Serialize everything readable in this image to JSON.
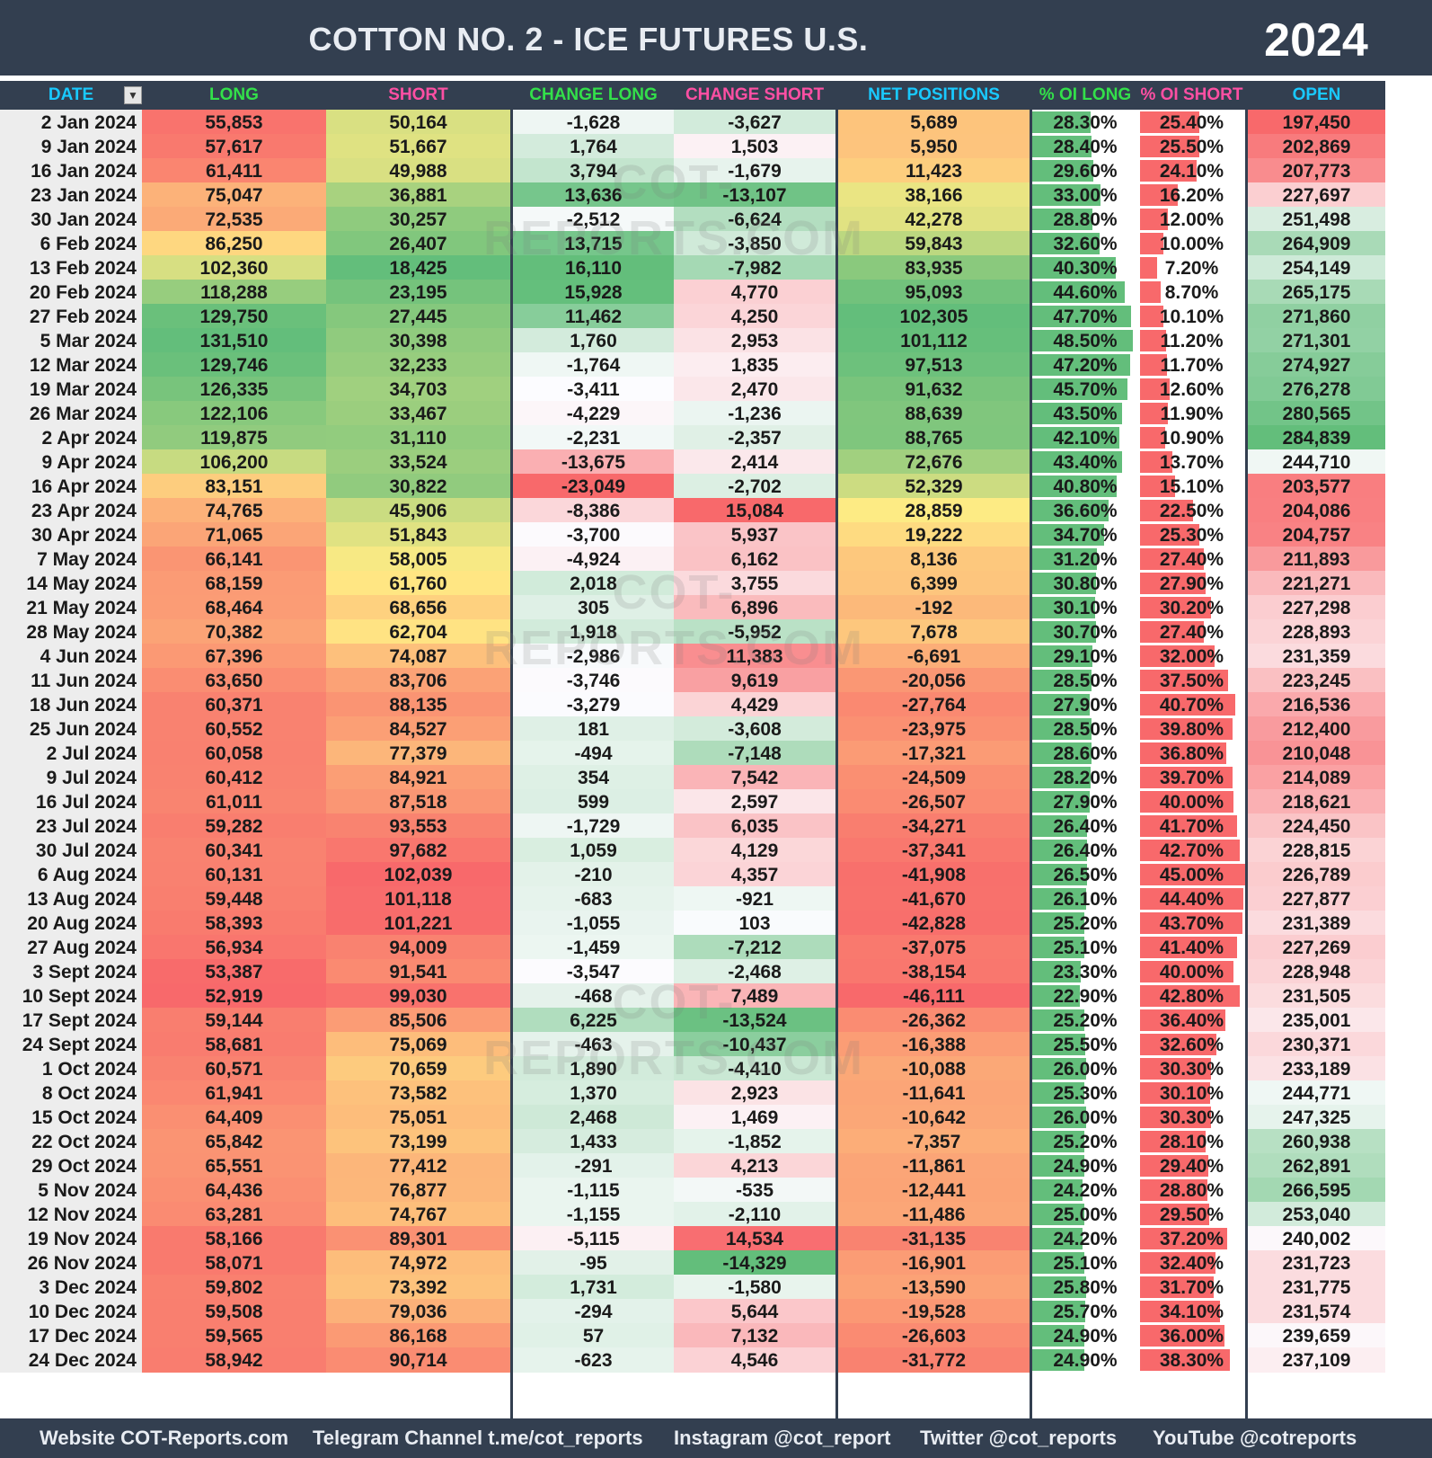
{
  "title": "COTTON NO. 2 - ICE FUTURES U.S.",
  "year": "2024",
  "columns": {
    "date": "DATE",
    "long": "LONG",
    "short": "SHORT",
    "change_long": "CHANGE LONG",
    "change_short": "CHANGE SHORT",
    "net": "NET POSITIONS",
    "oi_long": "% OI LONG",
    "oi_short": "% OI SHORT",
    "open_interest": "OPEN INTEREST"
  },
  "watermark": "COT-REPORTS.COM",
  "footer": {
    "website": "Website COT-Reports.com",
    "telegram": "Telegram Channel t.me/cot_reports",
    "instagram": "Instagram @cot_report",
    "twitter": "Twitter @cot_reports",
    "youtube": "YouTube @cotreports"
  },
  "rows": [
    [
      "2 Jan 2024",
      "55,853",
      "50,164",
      "-1,628",
      "-3,627",
      "5,689",
      "28.30%",
      "25.40%",
      "197,450"
    ],
    [
      "9 Jan 2024",
      "57,617",
      "51,667",
      "1,764",
      "1,503",
      "5,950",
      "28.40%",
      "25.50%",
      "202,869"
    ],
    [
      "16 Jan 2024",
      "61,411",
      "49,988",
      "3,794",
      "-1,679",
      "11,423",
      "29.60%",
      "24.10%",
      "207,773"
    ],
    [
      "23 Jan 2024",
      "75,047",
      "36,881",
      "13,636",
      "-13,107",
      "38,166",
      "33.00%",
      "16.20%",
      "227,697"
    ],
    [
      "30 Jan 2024",
      "72,535",
      "30,257",
      "-2,512",
      "-6,624",
      "42,278",
      "28.80%",
      "12.00%",
      "251,498"
    ],
    [
      "6 Feb 2024",
      "86,250",
      "26,407",
      "13,715",
      "-3,850",
      "59,843",
      "32.60%",
      "10.00%",
      "264,909"
    ],
    [
      "13 Feb 2024",
      "102,360",
      "18,425",
      "16,110",
      "-7,982",
      "83,935",
      "40.30%",
      "7.20%",
      "254,149"
    ],
    [
      "20 Feb 2024",
      "118,288",
      "23,195",
      "15,928",
      "4,770",
      "95,093",
      "44.60%",
      "8.70%",
      "265,175"
    ],
    [
      "27 Feb 2024",
      "129,750",
      "27,445",
      "11,462",
      "4,250",
      "102,305",
      "47.70%",
      "10.10%",
      "271,860"
    ],
    [
      "5 Mar 2024",
      "131,510",
      "30,398",
      "1,760",
      "2,953",
      "101,112",
      "48.50%",
      "11.20%",
      "271,301"
    ],
    [
      "12 Mar 2024",
      "129,746",
      "32,233",
      "-1,764",
      "1,835",
      "97,513",
      "47.20%",
      "11.70%",
      "274,927"
    ],
    [
      "19 Mar 2024",
      "126,335",
      "34,703",
      "-3,411",
      "2,470",
      "91,632",
      "45.70%",
      "12.60%",
      "276,278"
    ],
    [
      "26 Mar 2024",
      "122,106",
      "33,467",
      "-4,229",
      "-1,236",
      "88,639",
      "43.50%",
      "11.90%",
      "280,565"
    ],
    [
      "2 Apr 2024",
      "119,875",
      "31,110",
      "-2,231",
      "-2,357",
      "88,765",
      "42.10%",
      "10.90%",
      "284,839"
    ],
    [
      "9 Apr 2024",
      "106,200",
      "33,524",
      "-13,675",
      "2,414",
      "72,676",
      "43.40%",
      "13.70%",
      "244,710"
    ],
    [
      "16 Apr 2024",
      "83,151",
      "30,822",
      "-23,049",
      "-2,702",
      "52,329",
      "40.80%",
      "15.10%",
      "203,577"
    ],
    [
      "23 Apr 2024",
      "74,765",
      "45,906",
      "-8,386",
      "15,084",
      "28,859",
      "36.60%",
      "22.50%",
      "204,086"
    ],
    [
      "30 Apr 2024",
      "71,065",
      "51,843",
      "-3,700",
      "5,937",
      "19,222",
      "34.70%",
      "25.30%",
      "204,757"
    ],
    [
      "7 May 2024",
      "66,141",
      "58,005",
      "-4,924",
      "6,162",
      "8,136",
      "31.20%",
      "27.40%",
      "211,893"
    ],
    [
      "14 May 2024",
      "68,159",
      "61,760",
      "2,018",
      "3,755",
      "6,399",
      "30.80%",
      "27.90%",
      "221,271"
    ],
    [
      "21 May 2024",
      "68,464",
      "68,656",
      "305",
      "6,896",
      "-192",
      "30.10%",
      "30.20%",
      "227,298"
    ],
    [
      "28 May 2024",
      "70,382",
      "62,704",
      "1,918",
      "-5,952",
      "7,678",
      "30.70%",
      "27.40%",
      "228,893"
    ],
    [
      "4 Jun 2024",
      "67,396",
      "74,087",
      "-2,986",
      "11,383",
      "-6,691",
      "29.10%",
      "32.00%",
      "231,359"
    ],
    [
      "11 Jun 2024",
      "63,650",
      "83,706",
      "-3,746",
      "9,619",
      "-20,056",
      "28.50%",
      "37.50%",
      "223,245"
    ],
    [
      "18 Jun 2024",
      "60,371",
      "88,135",
      "-3,279",
      "4,429",
      "-27,764",
      "27.90%",
      "40.70%",
      "216,536"
    ],
    [
      "25 Jun 2024",
      "60,552",
      "84,527",
      "181",
      "-3,608",
      "-23,975",
      "28.50%",
      "39.80%",
      "212,400"
    ],
    [
      "2 Jul 2024",
      "60,058",
      "77,379",
      "-494",
      "-7,148",
      "-17,321",
      "28.60%",
      "36.80%",
      "210,048"
    ],
    [
      "9 Jul 2024",
      "60,412",
      "84,921",
      "354",
      "7,542",
      "-24,509",
      "28.20%",
      "39.70%",
      "214,089"
    ],
    [
      "16 Jul 2024",
      "61,011",
      "87,518",
      "599",
      "2,597",
      "-26,507",
      "27.90%",
      "40.00%",
      "218,621"
    ],
    [
      "23 Jul 2024",
      "59,282",
      "93,553",
      "-1,729",
      "6,035",
      "-34,271",
      "26.40%",
      "41.70%",
      "224,450"
    ],
    [
      "30 Jul 2024",
      "60,341",
      "97,682",
      "1,059",
      "4,129",
      "-37,341",
      "26.40%",
      "42.70%",
      "228,815"
    ],
    [
      "6 Aug 2024",
      "60,131",
      "102,039",
      "-210",
      "4,357",
      "-41,908",
      "26.50%",
      "45.00%",
      "226,789"
    ],
    [
      "13 Aug 2024",
      "59,448",
      "101,118",
      "-683",
      "-921",
      "-41,670",
      "26.10%",
      "44.40%",
      "227,877"
    ],
    [
      "20 Aug 2024",
      "58,393",
      "101,221",
      "-1,055",
      "103",
      "-42,828",
      "25.20%",
      "43.70%",
      "231,389"
    ],
    [
      "27 Aug 2024",
      "56,934",
      "94,009",
      "-1,459",
      "-7,212",
      "-37,075",
      "25.10%",
      "41.40%",
      "227,269"
    ],
    [
      "3 Sept 2024",
      "53,387",
      "91,541",
      "-3,547",
      "-2,468",
      "-38,154",
      "23.30%",
      "40.00%",
      "228,948"
    ],
    [
      "10 Sept 2024",
      "52,919",
      "99,030",
      "-468",
      "7,489",
      "-46,111",
      "22.90%",
      "42.80%",
      "231,505"
    ],
    [
      "17 Sept 2024",
      "59,144",
      "85,506",
      "6,225",
      "-13,524",
      "-26,362",
      "25.20%",
      "36.40%",
      "235,001"
    ],
    [
      "24 Sept 2024",
      "58,681",
      "75,069",
      "-463",
      "-10,437",
      "-16,388",
      "25.50%",
      "32.60%",
      "230,371"
    ],
    [
      "1 Oct 2024",
      "60,571",
      "70,659",
      "1,890",
      "-4,410",
      "-10,088",
      "26.00%",
      "30.30%",
      "233,189"
    ],
    [
      "8 Oct 2024",
      "61,941",
      "73,582",
      "1,370",
      "2,923",
      "-11,641",
      "25.30%",
      "30.10%",
      "244,771"
    ],
    [
      "15 Oct 2024",
      "64,409",
      "75,051",
      "2,468",
      "1,469",
      "-10,642",
      "26.00%",
      "30.30%",
      "247,325"
    ],
    [
      "22 Oct 2024",
      "65,842",
      "73,199",
      "1,433",
      "-1,852",
      "-7,357",
      "25.20%",
      "28.10%",
      "260,938"
    ],
    [
      "29 Oct 2024",
      "65,551",
      "77,412",
      "-291",
      "4,213",
      "-11,861",
      "24.90%",
      "29.40%",
      "262,891"
    ],
    [
      "5 Nov 2024",
      "64,436",
      "76,877",
      "-1,115",
      "-535",
      "-12,441",
      "24.20%",
      "28.80%",
      "266,595"
    ],
    [
      "12 Nov 2024",
      "63,281",
      "74,767",
      "-1,155",
      "-2,110",
      "-11,486",
      "25.00%",
      "29.50%",
      "253,040"
    ],
    [
      "19 Nov 2024",
      "58,166",
      "89,301",
      "-5,115",
      "14,534",
      "-31,135",
      "24.20%",
      "37.20%",
      "240,002"
    ],
    [
      "26 Nov 2024",
      "58,071",
      "74,972",
      "-95",
      "-14,329",
      "-16,901",
      "25.10%",
      "32.40%",
      "231,723"
    ],
    [
      "3 Dec 2024",
      "59,802",
      "73,392",
      "1,731",
      "-1,580",
      "-13,590",
      "25.80%",
      "31.70%",
      "231,775"
    ],
    [
      "10 Dec 2024",
      "59,508",
      "79,036",
      "-294",
      "5,644",
      "-19,528",
      "25.70%",
      "34.10%",
      "231,574"
    ],
    [
      "17 Dec 2024",
      "59,565",
      "86,168",
      "57",
      "7,132",
      "-26,603",
      "24.90%",
      "36.00%",
      "239,659"
    ],
    [
      "24 Dec 2024",
      "58,942",
      "90,714",
      "-623",
      "4,546",
      "-31,772",
      "24.90%",
      "38.30%",
      "237,109"
    ]
  ]
}
